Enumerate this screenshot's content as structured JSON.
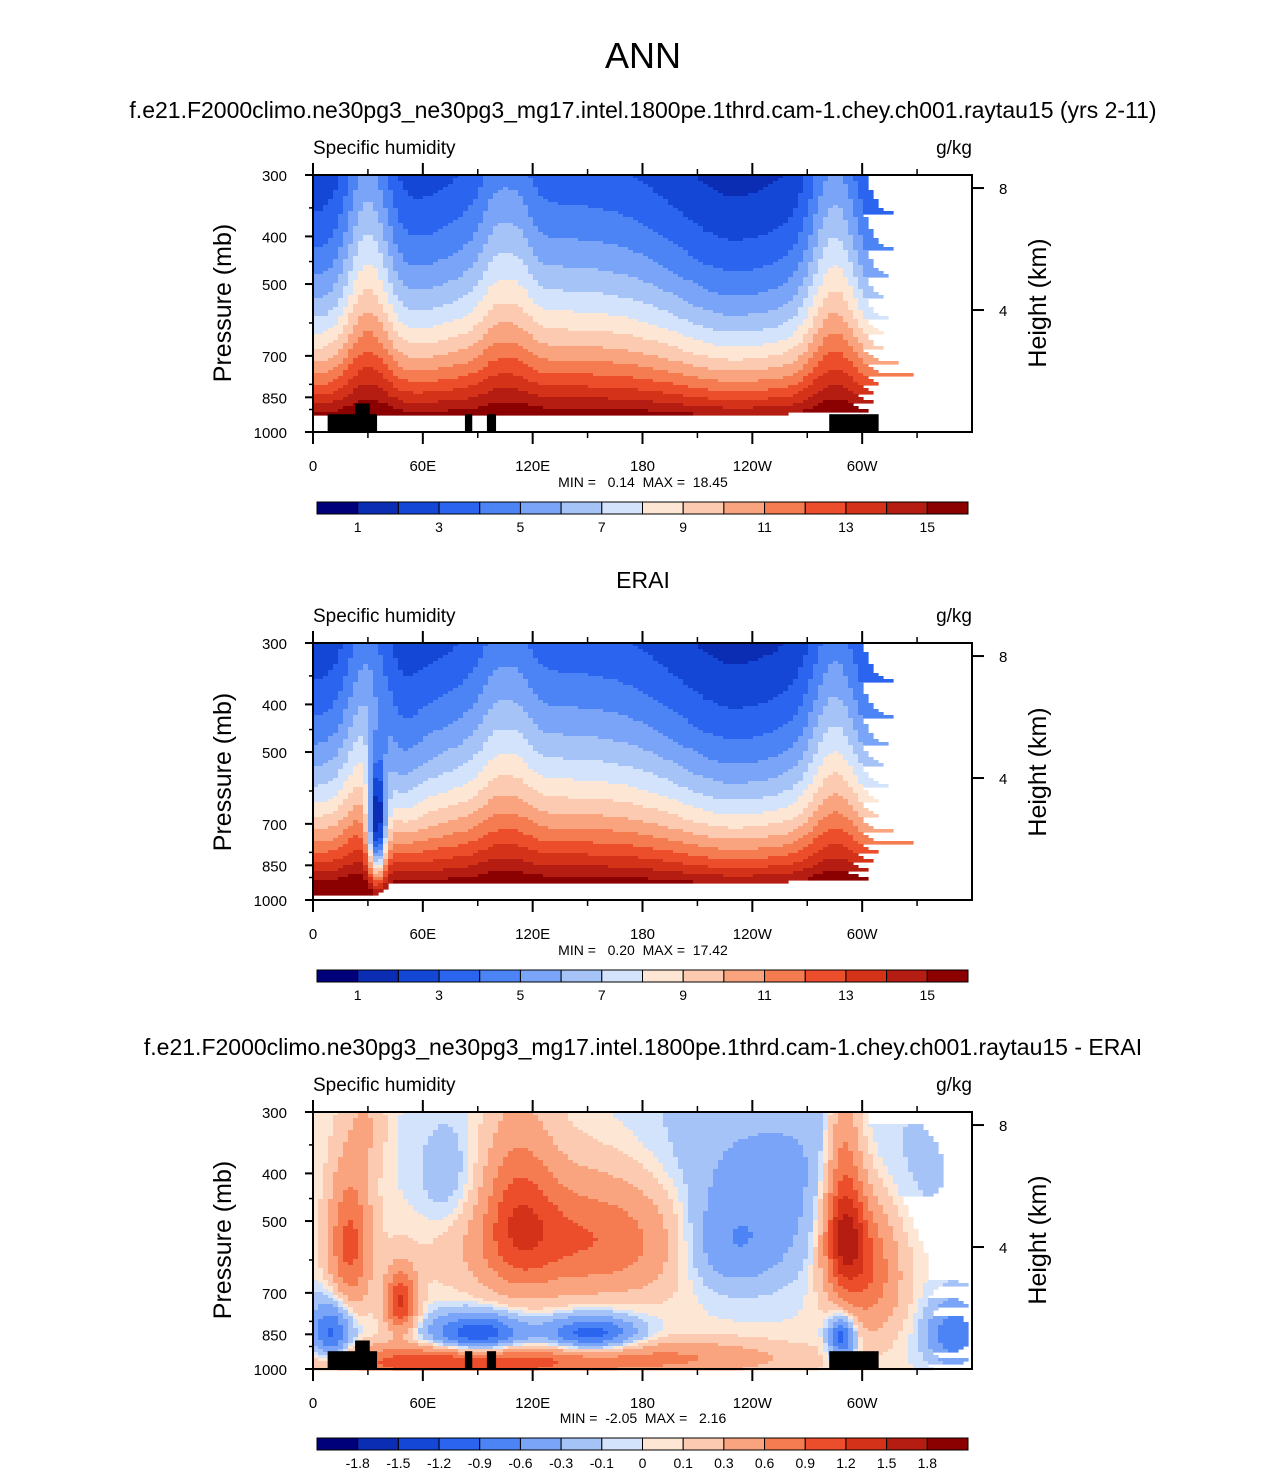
{
  "figure": {
    "season": "ANN"
  },
  "colors": {
    "abs_palette": [
      "#00007a",
      "#0a2db4",
      "#1447d6",
      "#2b64ee",
      "#4c84f6",
      "#79a4f7",
      "#a6c3f8",
      "#d3e3fb",
      "#fde6d3",
      "#fbcab1",
      "#f9a47f",
      "#f57b50",
      "#ec4d2a",
      "#d5321a",
      "#b51d12",
      "#8b0000"
    ],
    "diff_palette": [
      "#00007a",
      "#0a2db4",
      "#1447d6",
      "#2b64ee",
      "#4c84f6",
      "#79a4f7",
      "#a6c3f8",
      "#d3e3fb",
      "#fde6d3",
      "#fbcab1",
      "#f9a47f",
      "#f57b50",
      "#ec4d2a",
      "#d5321a",
      "#b51d12",
      "#8b0000"
    ],
    "terrain": "#000000"
  },
  "chart_data": [
    {
      "type": "heatmap",
      "title": "f.e21.F2000climo.ne30pg3_ne30pg3_mg17.intel.1800pe.1thrd.cam-1.chey.ch001.raytau15 (yrs 2-11)",
      "left_label": "Specific humidity",
      "right_label": "g/kg",
      "ylabel": "Pressure (mb)",
      "ylabel_right": "Height (km)",
      "x_ticks": [
        "0",
        "60E",
        "120E",
        "180",
        "120W",
        "60W"
      ],
      "y_ticks": [
        "300",
        "400",
        "500",
        "700",
        "850",
        "1000"
      ],
      "y_ticks_right": [
        "8",
        "4"
      ],
      "stats": "MIN =   0.14  MAX =  18.45",
      "min": 0.14,
      "max": 18.45,
      "colorbar_labels": [
        "1",
        "3",
        "5",
        "7",
        "9",
        "11",
        "13",
        "15"
      ],
      "levels": [
        0,
        1,
        2,
        3,
        4,
        5,
        6,
        7,
        8,
        9,
        10,
        11,
        12,
        13,
        14,
        15,
        16
      ]
    },
    {
      "type": "heatmap",
      "title": "ERAI",
      "left_label": "Specific humidity",
      "right_label": "g/kg",
      "ylabel": "Pressure (mb)",
      "ylabel_right": "Height (km)",
      "x_ticks": [
        "0",
        "60E",
        "120E",
        "180",
        "120W",
        "60W"
      ],
      "y_ticks": [
        "300",
        "400",
        "500",
        "700",
        "850",
        "1000"
      ],
      "y_ticks_right": [
        "8",
        "4"
      ],
      "stats": "MIN =   0.20  MAX =  17.42",
      "min": 0.2,
      "max": 17.42,
      "colorbar_labels": [
        "1",
        "3",
        "5",
        "7",
        "9",
        "11",
        "13",
        "15"
      ],
      "levels": [
        0,
        1,
        2,
        3,
        4,
        5,
        6,
        7,
        8,
        9,
        10,
        11,
        12,
        13,
        14,
        15,
        16
      ]
    },
    {
      "type": "heatmap",
      "title": "f.e21.F2000climo.ne30pg3_ne30pg3_mg17.intel.1800pe.1thrd.cam-1.chey.ch001.raytau15 - ERAI",
      "left_label": "Specific humidity",
      "right_label": "g/kg",
      "ylabel": "Pressure (mb)",
      "ylabel_right": "Height (km)",
      "x_ticks": [
        "0",
        "60E",
        "120E",
        "180",
        "120W",
        "60W"
      ],
      "y_ticks": [
        "300",
        "400",
        "500",
        "700",
        "850",
        "1000"
      ],
      "y_ticks_right": [
        "8",
        "4"
      ],
      "stats": "MIN =  -2.05  MAX =   2.16",
      "min": -2.05,
      "max": 2.16,
      "colorbar_labels": [
        "-1.8",
        "-1.5",
        "-1.2",
        "-0.9",
        "-0.6",
        "-0.3",
        "-0.1",
        "0",
        "0.1",
        "0.3",
        "0.6",
        "0.9",
        "1.2",
        "1.5",
        "1.8"
      ],
      "levels": [
        -2.1,
        -1.8,
        -1.5,
        -1.2,
        -0.9,
        -0.6,
        -0.3,
        -0.1,
        0,
        0.1,
        0.3,
        0.6,
        0.9,
        1.2,
        1.5,
        1.8,
        2.1
      ]
    }
  ]
}
